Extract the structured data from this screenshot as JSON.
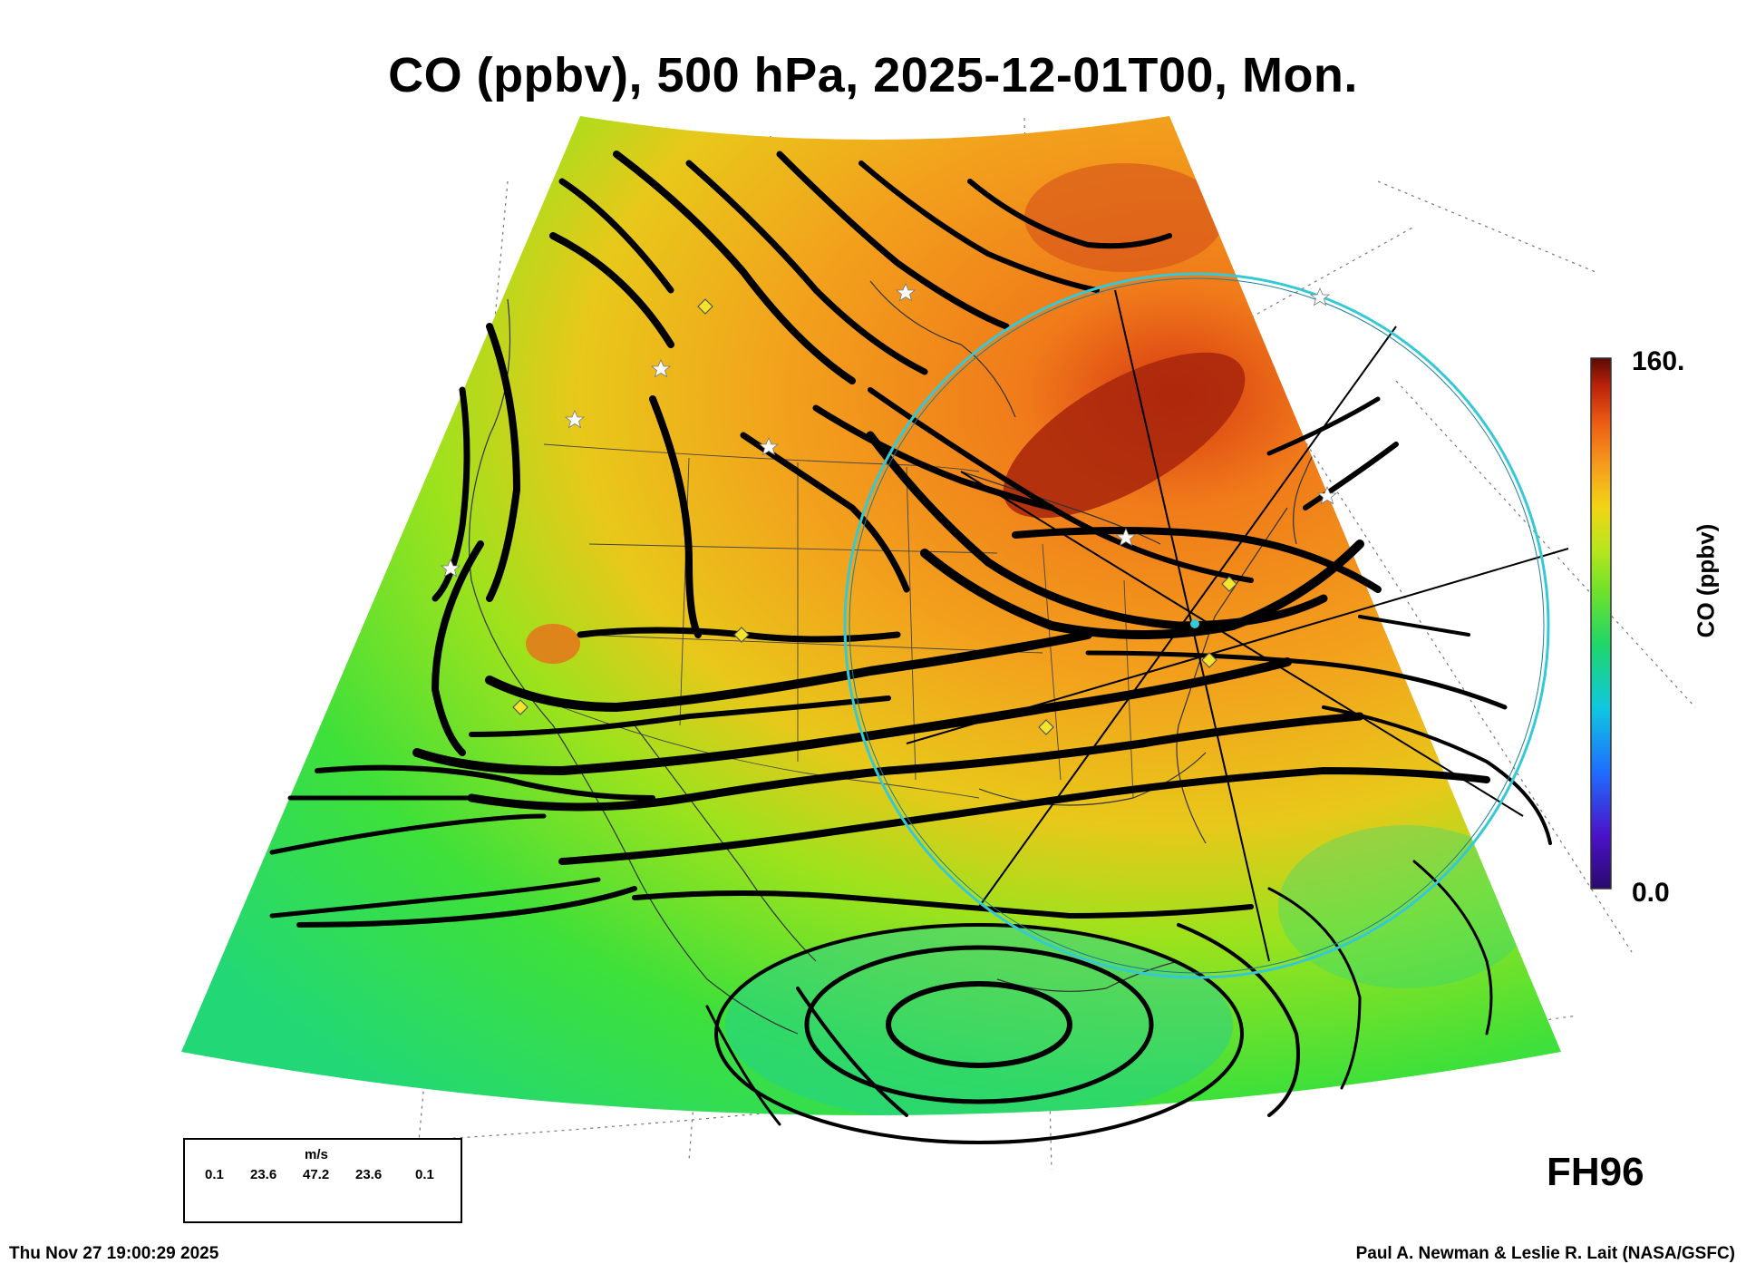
{
  "title": "CO (ppbv), 500 hPa, 2025-12-01T00, Mon.",
  "colorbar": {
    "max_label": "160.",
    "min_label": "0.0",
    "title": "CO (ppbv)",
    "range": [
      0,
      160
    ],
    "stops": [
      "#2a0a6e",
      "#4b12c8",
      "#1f6dff",
      "#0fc7e0",
      "#1fd66a",
      "#6fe12a",
      "#b8e61c",
      "#f2d415",
      "#f59a1c",
      "#ec5a14",
      "#b8210a",
      "#5a0a04"
    ]
  },
  "wind_legend": {
    "unit": "m/s",
    "labels": [
      "0.1",
      "23.6",
      "47.2",
      "23.6",
      "0.1"
    ]
  },
  "forecast_hour": "FH96",
  "footer": {
    "timestamp": "Thu Nov 27 19:00:29 2025",
    "credit": "Paul A. Newman & Leslie R. Lait (NASA/GSFC)"
  },
  "colors": {
    "circle": "#35c9d6",
    "streamline": "#000000",
    "station_star": "#ffffff",
    "station_diamond": "#f5e52a"
  }
}
